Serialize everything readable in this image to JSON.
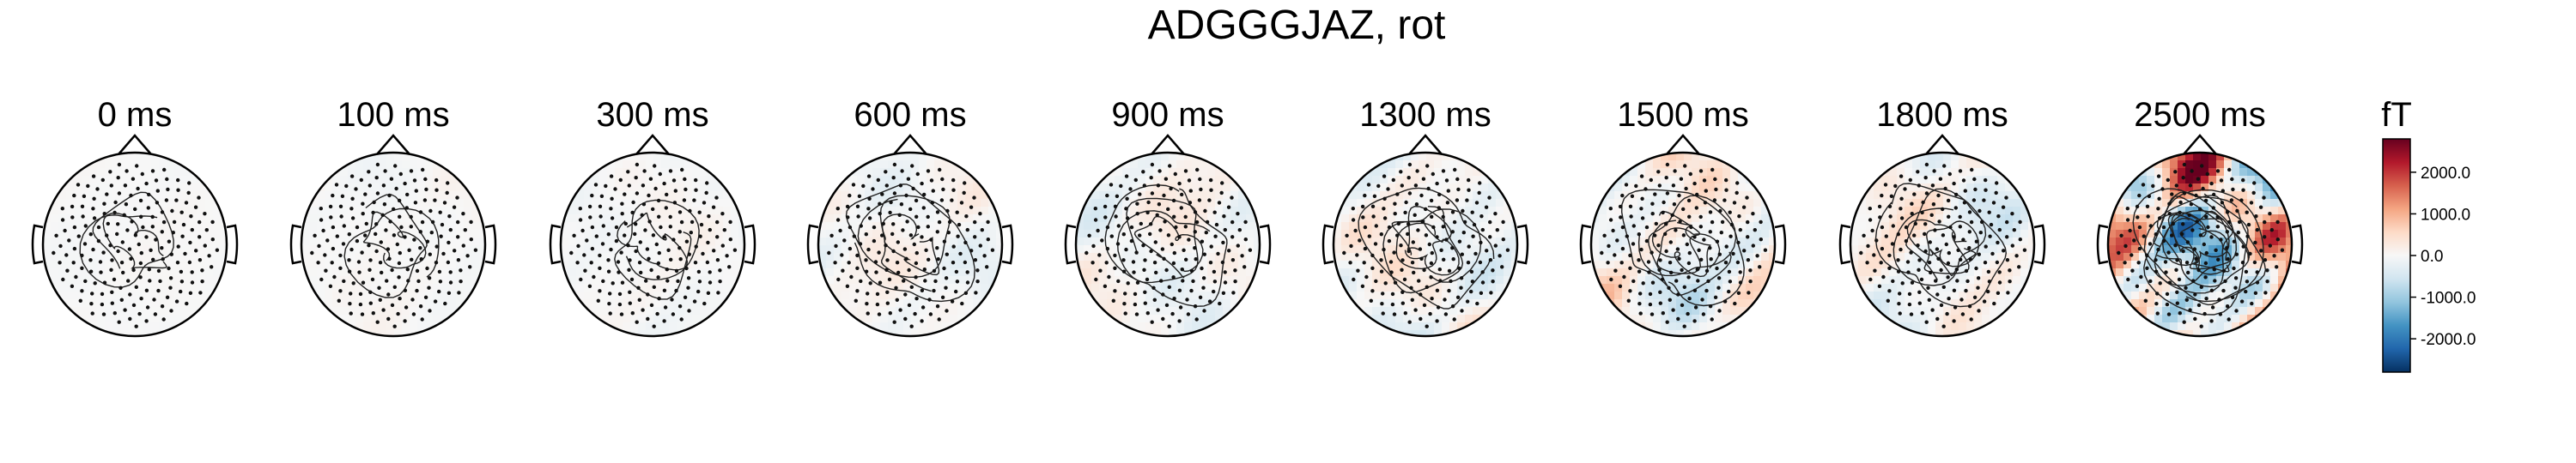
{
  "figure": {
    "title": "ADGGGJAZ, rot"
  },
  "chart_data": {
    "type": "heatmap",
    "title": "ADGGGJAZ, rot",
    "subplot_titles": [
      "0 ms",
      "100 ms",
      "300 ms",
      "600 ms",
      "900 ms",
      "1300 ms",
      "1500 ms",
      "1800 ms",
      "2500 ms"
    ],
    "times_ms": [
      0,
      100,
      300,
      600,
      900,
      1300,
      1500,
      1800,
      2500
    ],
    "colorbar": {
      "unit_label": "fT",
      "ticks": [
        2000,
        1000,
        0,
        -1000,
        -2000
      ],
      "tick_labels": [
        "2000.0",
        "1000.0",
        "0.0",
        "-1000.0",
        "-2000.0"
      ],
      "vlim": [
        -2800,
        2800
      ],
      "colormap": "RdBu_r",
      "colors": [
        "#053061",
        "#2166ac",
        "#4393c3",
        "#92c5de",
        "#d1e5f0",
        "#f7f7f7",
        "#fddbc7",
        "#f4a582",
        "#d6604d",
        "#b2182b",
        "#67001f"
      ]
    },
    "approx_amplitude_fT": [
      60,
      120,
      160,
      320,
      420,
      620,
      850,
      650,
      2700
    ],
    "sensor_count": 200,
    "legend": "none",
    "grid": false
  }
}
